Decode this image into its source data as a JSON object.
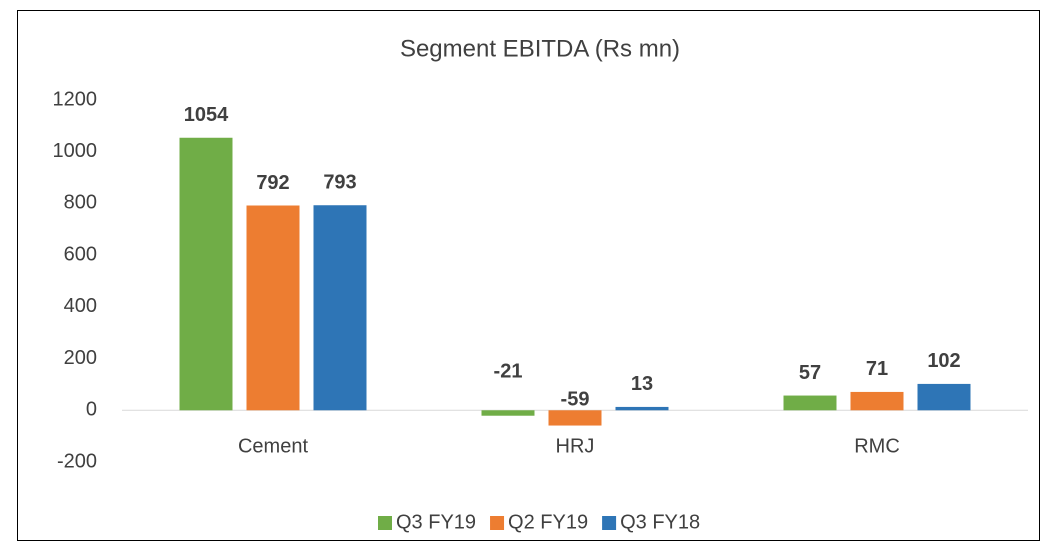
{
  "chart_data": {
    "type": "bar",
    "title": "Segment EBITDA (Rs mn)",
    "categories": [
      "Cement",
      "HRJ",
      "RMC"
    ],
    "series": [
      {
        "name": "Q3 FY19",
        "color": "#70ad47",
        "values": [
          1054,
          -21,
          57
        ]
      },
      {
        "name": "Q2 FY19",
        "color": "#ed7d31",
        "values": [
          792,
          -59,
          71
        ]
      },
      {
        "name": "Q3 FY18",
        "color": "#2e75b6",
        "values": [
          793,
          13,
          102
        ]
      }
    ],
    "ylim": [
      -200,
      1200
    ],
    "yticks": [
      -200,
      0,
      200,
      400,
      600,
      800,
      1000,
      1200
    ],
    "grid": false,
    "legend": "bottom"
  }
}
